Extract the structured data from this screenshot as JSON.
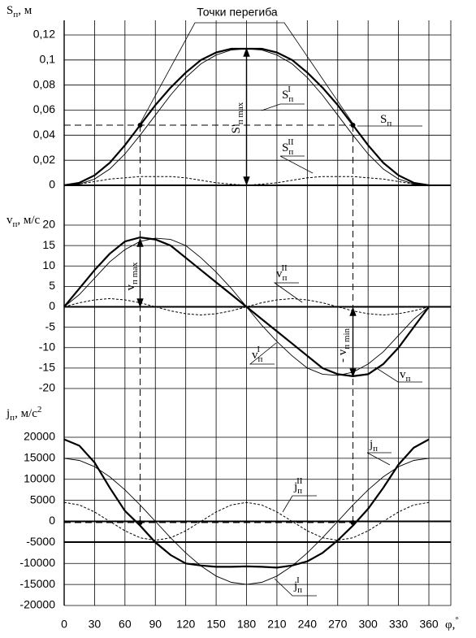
{
  "chart_data": [
    {
      "type": "line",
      "y_label": {
        "text": "S",
        "sub": "п",
        "rest": ", м"
      },
      "annotation": "Точки перегиба",
      "arrow_label": {
        "text": "S'",
        "sub": "п max"
      },
      "x": [
        0,
        15,
        30,
        45,
        60,
        75,
        90,
        105,
        120,
        135,
        150,
        165,
        180,
        195,
        210,
        225,
        240,
        255,
        270,
        285,
        300,
        315,
        330,
        345,
        360
      ],
      "ylim": [
        0,
        0.12
      ],
      "yticks": [
        0,
        {
          "value": 0.02,
          "label": "0,02"
        },
        {
          "value": 0.04,
          "label": "0,04"
        },
        {
          "value": 0.06,
          "label": "0,06"
        },
        {
          "value": 0.08,
          "label": "0,08"
        },
        {
          "value": 0.1,
          "label": "0,1"
        },
        {
          "value": 0.12,
          "label": "0,12"
        }
      ],
      "series": [
        {
          "name": "S",
          "sub": "п",
          "line_style": "bold",
          "color": "#000000",
          "values": [
            0,
            0.002,
            0.008,
            0.018,
            0.032,
            0.048,
            0.064,
            0.078,
            0.09,
            0.1,
            0.106,
            0.109,
            0.109,
            0.109,
            0.106,
            0.1,
            0.09,
            0.078,
            0.064,
            0.048,
            0.032,
            0.018,
            0.008,
            0.002,
            0
          ]
        },
        {
          "name": "S",
          "sub": "п",
          "sup": "I",
          "line_style": "thin",
          "color": "#000000",
          "values": [
            0,
            0.001,
            0.005,
            0.013,
            0.025,
            0.04,
            0.056,
            0.072,
            0.086,
            0.097,
            0.104,
            0.108,
            0.109,
            0.108,
            0.104,
            0.097,
            0.086,
            0.072,
            0.056,
            0.04,
            0.025,
            0.013,
            0.005,
            0.001,
            0
          ]
        },
        {
          "name": "S",
          "sub": "п",
          "sup": "II",
          "line_style": "dotted",
          "color": "#000000",
          "values": [
            0,
            0.001,
            0.003,
            0.005,
            0.006,
            0.007,
            0.007,
            0.007,
            0.006,
            0.004,
            0.002,
            0.001,
            0,
            0.001,
            0.002,
            0.004,
            0.006,
            0.007,
            0.007,
            0.007,
            0.006,
            0.005,
            0.003,
            0.001,
            0
          ]
        }
      ]
    },
    {
      "type": "line",
      "y_label": {
        "text": "v",
        "sub": "п",
        "rest": ", м/с"
      },
      "arrow_label_max": {
        "text": "v",
        "sub": "п max"
      },
      "arrow_label_min": {
        "text": "- v",
        "sub": "п min"
      },
      "x": [
        0,
        15,
        30,
        45,
        60,
        75,
        90,
        105,
        120,
        135,
        150,
        165,
        180,
        195,
        210,
        225,
        240,
        255,
        270,
        285,
        300,
        315,
        330,
        345,
        360
      ],
      "ylim": [
        -20,
        20
      ],
      "yticks": [
        20,
        15,
        10,
        5,
        0,
        -5,
        -10,
        -15,
        -20
      ],
      "series": [
        {
          "name": "v",
          "sub": "п",
          "line_style": "bold",
          "color": "#000000",
          "values": [
            0,
            4.5,
            9,
            13,
            16,
            17,
            16.5,
            15,
            12,
            9,
            6,
            3,
            0,
            -3,
            -6,
            -9,
            -12,
            -15,
            -16.5,
            -17,
            -16.5,
            -14,
            -10,
            -5,
            0
          ]
        },
        {
          "name": "v",
          "sub": "п",
          "sup": "I",
          "line_style": "thin",
          "color": "#000000",
          "values": [
            0,
            3,
            7,
            11,
            14,
            16,
            16.8,
            16.5,
            15,
            12,
            8.5,
            4.5,
            0,
            -4.5,
            -8.5,
            -12,
            -15,
            -16.5,
            -16.8,
            -16,
            -14,
            -11,
            -7,
            -3,
            0
          ]
        },
        {
          "name": "v",
          "sub": "п",
          "sup": "II",
          "line_style": "dotted",
          "color": "#000000",
          "values": [
            0,
            1,
            1.7,
            2,
            1.7,
            1,
            0,
            -1,
            -1.7,
            -2,
            -1.7,
            -1,
            0,
            1,
            1.7,
            2,
            1.7,
            1,
            0,
            -1,
            -1.7,
            -2,
            -1.7,
            -1,
            0
          ]
        }
      ]
    },
    {
      "type": "line",
      "y_label": {
        "text": "j",
        "sub": "п",
        "rest": ", м/с",
        "sup": "2"
      },
      "x_label": {
        "text": "φ,",
        "sup": "°"
      },
      "x": [
        0,
        15,
        30,
        45,
        60,
        75,
        90,
        105,
        120,
        135,
        150,
        165,
        180,
        195,
        210,
        225,
        240,
        255,
        270,
        285,
        300,
        315,
        330,
        345,
        360
      ],
      "xlim": [
        0,
        360
      ],
      "xticks": [
        0,
        30,
        60,
        90,
        120,
        150,
        180,
        210,
        240,
        270,
        300,
        330,
        360
      ],
      "ylim": [
        -20000,
        20000
      ],
      "yticks": [
        20000,
        15000,
        10000,
        5000,
        0,
        -5000,
        -10000,
        -15000,
        -20000
      ],
      "series": [
        {
          "name": "j",
          "sub": "п",
          "line_style": "bold",
          "color": "#000000",
          "values": [
            19500,
            18000,
            14000,
            8000,
            2500,
            -1000,
            -5000,
            -8000,
            -10000,
            -10500,
            -10800,
            -10800,
            -10700,
            -10800,
            -11000,
            -10500,
            -9500,
            -7500,
            -4500,
            -1000,
            3000,
            8000,
            13500,
            17500,
            19500
          ]
        },
        {
          "name": "j",
          "sub": "п",
          "sup": "I",
          "line_style": "thin",
          "color": "#000000",
          "values": [
            15000,
            14500,
            13000,
            10600,
            7500,
            3900,
            0,
            -3900,
            -7500,
            -10600,
            -13000,
            -14500,
            -15000,
            -14500,
            -13000,
            -10600,
            -7500,
            -3900,
            0,
            3900,
            7500,
            10600,
            13000,
            14500,
            15000
          ]
        },
        {
          "name": "j",
          "sub": "п",
          "sup": "II",
          "line_style": "dotted",
          "color": "#000000",
          "values": [
            4500,
            3900,
            2250,
            0,
            -2250,
            -3900,
            -4500,
            -3900,
            -2250,
            0,
            2250,
            3900,
            4500,
            3900,
            2250,
            0,
            -2250,
            -3900,
            -4500,
            -3900,
            -2250,
            0,
            2250,
            3900,
            4500
          ]
        }
      ]
    }
  ]
}
